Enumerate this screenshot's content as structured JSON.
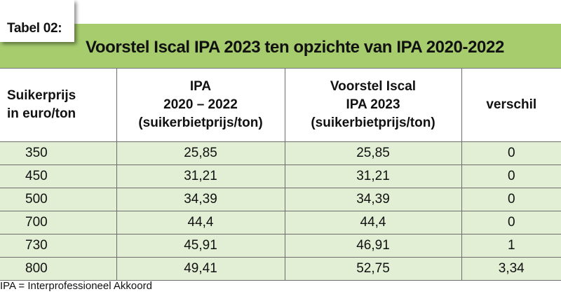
{
  "tag_label": "Tabel 02:",
  "title": "Voorstel Iscal IPA 2023 ten opzichte van IPA 2020-2022",
  "table": {
    "headers": [
      [
        "Suikerprijs",
        "in euro/ton"
      ],
      [
        "IPA",
        "2020 – 2022",
        "(suikerbietprijs/ton)"
      ],
      [
        "Voorstel Iscal",
        "IPA 2023",
        "(suikerbietprijs/ton)"
      ],
      [
        "verschil"
      ]
    ],
    "rows": [
      [
        "350",
        "25,85",
        "25,85",
        "0"
      ],
      [
        "450",
        "31,21",
        "31,21",
        "0"
      ],
      [
        "500",
        "34,39",
        "34,39",
        "0"
      ],
      [
        "700",
        "44,4",
        "44,4",
        "0"
      ],
      [
        "730",
        "45,91",
        "46,91",
        "1"
      ],
      [
        "800",
        "49,41",
        "52,75",
        "3,34"
      ]
    ]
  },
  "footnote": "IPA = Interprofessioneel Akkoord",
  "colors": {
    "title_band": "#a6cc6e",
    "row_fill": "#e2efd5",
    "grid": "#6d6d6d"
  }
}
